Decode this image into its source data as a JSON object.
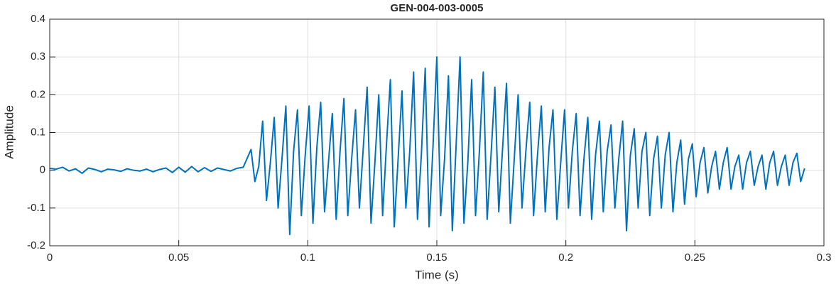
{
  "chart_data": {
    "type": "line",
    "title": "GEN-004-003-0005",
    "xlabel": "Time (s)",
    "ylabel": "Amplitude",
    "xlim": [
      0,
      0.3
    ],
    "xticks": [
      0,
      0.05,
      0.1,
      0.15,
      0.2,
      0.25,
      0.3
    ],
    "ylim": [
      -0.2,
      0.4
    ],
    "yticks": [
      -0.2,
      -0.1,
      0,
      0.1,
      0.2,
      0.3,
      0.4
    ],
    "grid": true,
    "series": [
      {
        "name": "Amplitude",
        "color": "#0072bd",
        "x": [
          0,
          0.0025,
          0.005,
          0.0075,
          0.01,
          0.0125,
          0.015,
          0.0175,
          0.02,
          0.0225,
          0.025,
          0.0275,
          0.03,
          0.0325,
          0.035,
          0.0375,
          0.04,
          0.0425,
          0.045,
          0.0475,
          0.05,
          0.0525,
          0.055,
          0.0575,
          0.06,
          0.0625,
          0.065,
          0.0675,
          0.07,
          0.0725,
          0.075,
          0.078,
          0.0795,
          0.081,
          0.0825,
          0.084,
          0.0855,
          0.087,
          0.0885,
          0.09,
          0.0915,
          0.093,
          0.0945,
          0.096,
          0.0975,
          0.099,
          0.1005,
          0.102,
          0.1035,
          0.105,
          0.1065,
          0.108,
          0.1095,
          0.111,
          0.1125,
          0.114,
          0.1155,
          0.117,
          0.1185,
          0.12,
          0.1215,
          0.123,
          0.1245,
          0.126,
          0.1275,
          0.129,
          0.1305,
          0.132,
          0.1335,
          0.135,
          0.1365,
          0.138,
          0.1395,
          0.141,
          0.1425,
          0.144,
          0.1455,
          0.147,
          0.1485,
          0.15,
          0.1515,
          0.153,
          0.1545,
          0.156,
          0.1575,
          0.159,
          0.1605,
          0.162,
          0.1635,
          0.165,
          0.1665,
          0.168,
          0.1695,
          0.171,
          0.1725,
          0.174,
          0.1755,
          0.177,
          0.1785,
          0.18,
          0.1815,
          0.183,
          0.1845,
          0.186,
          0.1875,
          0.189,
          0.1905,
          0.192,
          0.1935,
          0.195,
          0.1965,
          0.198,
          0.1995,
          0.201,
          0.2025,
          0.204,
          0.2055,
          0.207,
          0.2085,
          0.21,
          0.2115,
          0.213,
          0.2145,
          0.216,
          0.2175,
          0.219,
          0.2205,
          0.222,
          0.2235,
          0.225,
          0.2265,
          0.228,
          0.2295,
          0.231,
          0.2325,
          0.234,
          0.2355,
          0.237,
          0.2385,
          0.24,
          0.2415,
          0.243,
          0.2445,
          0.246,
          0.2475,
          0.249,
          0.2505,
          0.252,
          0.2535,
          0.255,
          0.2565,
          0.258,
          0.2595,
          0.261,
          0.2625,
          0.264,
          0.2655,
          0.267,
          0.2685,
          0.27,
          0.2715,
          0.273,
          0.2745,
          0.276,
          0.2775,
          0.279,
          0.2805,
          0.282,
          0.2835,
          0.285,
          0.2865,
          0.288,
          0.2895,
          0.291,
          0.2925
        ],
        "values": [
          0.005,
          0.003,
          0.008,
          -0.002,
          0.004,
          -0.008,
          0.006,
          0.002,
          -0.004,
          0.003,
          0.001,
          -0.003,
          0.004,
          0,
          -0.002,
          0.003,
          -0.004,
          0.002,
          0.006,
          -0.006,
          0.008,
          -0.005,
          0.01,
          -0.004,
          0.007,
          -0.003,
          0.006,
          0.002,
          -0.002,
          0.005,
          0.008,
          0.055,
          -0.03,
          0.01,
          0.13,
          -0.08,
          0.02,
          0.14,
          -0.1,
          0.03,
          0.17,
          -0.17,
          0.05,
          0.16,
          -0.12,
          0.04,
          0.17,
          -0.14,
          0.06,
          0.18,
          -0.11,
          0.02,
          0.15,
          -0.13,
          0.05,
          0.19,
          -0.12,
          0.03,
          0.16,
          -0.1,
          0.06,
          0.22,
          -0.14,
          0.02,
          0.2,
          -0.12,
          0.07,
          0.24,
          -0.15,
          0.03,
          0.21,
          -0.1,
          0.05,
          0.26,
          -0.13,
          0.04,
          0.27,
          -0.15,
          0.06,
          0.3,
          -0.12,
          0.03,
          0.25,
          -0.16,
          0.07,
          0.3,
          -0.14,
          0.02,
          0.24,
          -0.12,
          0.05,
          0.26,
          -0.13,
          0.04,
          0.22,
          -0.11,
          0.06,
          0.23,
          -0.14,
          0.03,
          0.2,
          -0.1,
          0.05,
          0.18,
          -0.12,
          0.04,
          0.17,
          -0.11,
          0.06,
          0.16,
          -0.13,
          0.02,
          0.16,
          -0.1,
          0.05,
          0.15,
          -0.12,
          0.03,
          0.14,
          -0.13,
          0.04,
          0.13,
          -0.11,
          0.05,
          0.12,
          -0.1,
          0.03,
          0.13,
          -0.16,
          0.04,
          0.11,
          -0.1,
          0.05,
          0.1,
          -0.12,
          0.03,
          0.09,
          -0.1,
          0.04,
          0.1,
          -0.11,
          0.02,
          0.08,
          -0.09,
          0.03,
          0.07,
          -0.07,
          0.02,
          0.06,
          -0.06,
          0.01,
          0.05,
          -0.05,
          0.02,
          0.06,
          -0.05,
          0.01,
          0.04,
          -0.05,
          0.02,
          0.05,
          -0.04,
          0.01,
          0.04,
          -0.05,
          0.02,
          0.05,
          -0.04,
          0.01,
          0.04,
          -0.04,
          0.02,
          0.045,
          -0.03,
          0.005
        ]
      }
    ]
  }
}
